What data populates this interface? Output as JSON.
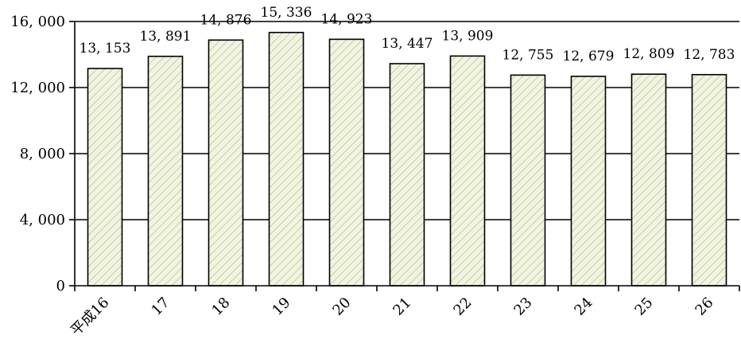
{
  "chart_data": {
    "type": "bar",
    "categories": [
      "平成16",
      "17",
      "18",
      "19",
      "20",
      "21",
      "22",
      "23",
      "24",
      "25",
      "26"
    ],
    "values": [
      13153,
      13891,
      14876,
      15336,
      14923,
      13447,
      13909,
      12755,
      12679,
      12809,
      12783
    ],
    "data_labels": [
      "13, 153",
      "13, 891",
      "14, 876",
      "15, 336",
      "14, 923",
      "13, 447",
      "13, 909",
      "12, 755",
      "12, 679",
      "12, 809",
      "12, 783"
    ],
    "title": "",
    "xlabel": "",
    "ylabel": "",
    "ylim": [
      0,
      16000
    ],
    "yticks": [
      0,
      4000,
      8000,
      12000,
      16000
    ],
    "ytick_labels": [
      "0",
      "4, 000",
      "8, 000",
      "12, 000",
      "16, 000"
    ],
    "grid": true,
    "legend": "none",
    "colors": {
      "bar_fill": "#f1f4e2",
      "bar_hatch": "#c9d3a4",
      "bar_stroke": "#000000",
      "grid": "#000000"
    }
  }
}
